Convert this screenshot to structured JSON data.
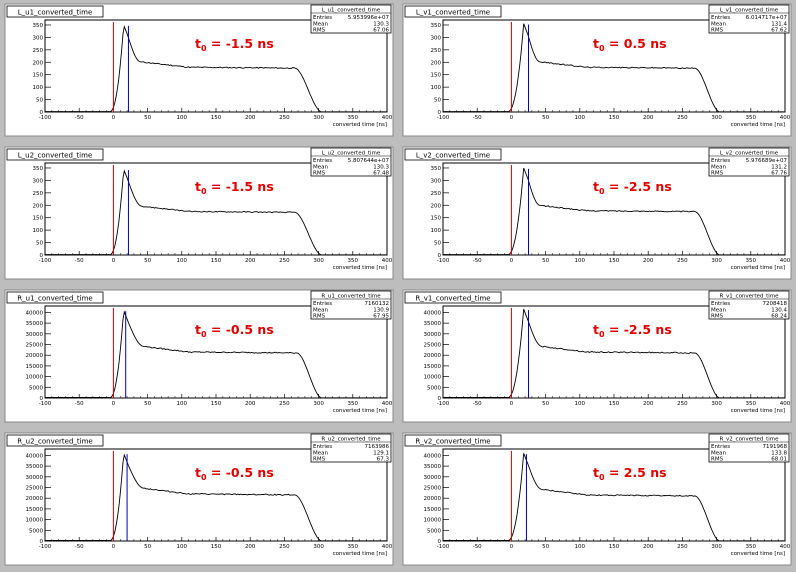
{
  "window": {
    "background": "#bdbdbd",
    "pad_color": "#ffffff",
    "curve_color": "#000000",
    "cut_color": "#d00000",
    "mean_color": "#0000c0",
    "annot_color": "#e00000"
  },
  "stats_labels": {
    "entries": "Entries",
    "mean": "Mean",
    "rms": "RMS"
  },
  "chart_data": [
    {
      "type": "line",
      "name": "L_u1_converted_time",
      "title": "L_u1_converted_time",
      "stats": {
        "entries": "5.953996e+07",
        "mean": "130.3",
        "rms": "67.06"
      },
      "annotation": {
        "t0": "t",
        "sub": "0",
        "rest": " = -1.5 ns"
      },
      "xlabel": "converted time [ns]",
      "xlim": [
        -100,
        400
      ],
      "ylim": [
        0,
        370
      ],
      "xticks": [
        "-100",
        "-50",
        "0",
        "50",
        "100",
        "150",
        "200",
        "250",
        "300",
        "350",
        "400"
      ],
      "yticks": [
        "0",
        "50",
        "100",
        "150",
        "200",
        "250",
        "300",
        "350"
      ],
      "ytick_values": [
        0,
        50,
        100,
        150,
        200,
        250,
        300,
        350
      ],
      "cut_x": 0,
      "mean_line_x": 22,
      "peak": 350,
      "plateau": 180,
      "shape": {
        "rise_start": -5,
        "peak_x": 15,
        "dip_x": 40,
        "knee_x": 265,
        "end_x": 305
      }
    },
    {
      "type": "line",
      "name": "L_v1_converted_time",
      "title": "L_v1_converted_time",
      "stats": {
        "entries": "6.014717e+07",
        "mean": "131.4",
        "rms": "67.62"
      },
      "annotation": {
        "t0": "t",
        "sub": "0",
        "rest": " = 0.5 ns"
      },
      "xlabel": "converted time [ns]",
      "xlim": [
        -100,
        400
      ],
      "ylim": [
        0,
        370
      ],
      "xticks": [
        "-100",
        "-50",
        "0",
        "50",
        "100",
        "150",
        "200",
        "250",
        "300",
        "350",
        "400"
      ],
      "yticks": [
        "0",
        "50",
        "100",
        "150",
        "200",
        "250",
        "300",
        "350"
      ],
      "ytick_values": [
        0,
        50,
        100,
        150,
        200,
        250,
        300,
        350
      ],
      "cut_x": 0,
      "mean_line_x": 25,
      "peak": 355,
      "plateau": 180,
      "shape": {
        "rise_start": -5,
        "peak_x": 18,
        "dip_x": 42,
        "knee_x": 268,
        "end_x": 305
      }
    },
    {
      "type": "line",
      "name": "L_u2_converted_time",
      "title": "L_u2_converted_time",
      "stats": {
        "entries": "5.807644e+07",
        "mean": "130.3",
        "rms": "67.48"
      },
      "annotation": {
        "t0": "t",
        "sub": "0",
        "rest": " = -1.5 ns"
      },
      "xlabel": "converted time [ns]",
      "xlim": [
        -100,
        400
      ],
      "ylim": [
        0,
        370
      ],
      "xticks": [
        "-100",
        "-50",
        "0",
        "50",
        "100",
        "150",
        "200",
        "250",
        "300",
        "350",
        "400"
      ],
      "yticks": [
        "0",
        "50",
        "100",
        "150",
        "200",
        "250",
        "300",
        "350"
      ],
      "ytick_values": [
        0,
        50,
        100,
        150,
        200,
        250,
        300,
        350
      ],
      "cut_x": 0,
      "mean_line_x": 22,
      "peak": 345,
      "plateau": 175,
      "shape": {
        "rise_start": -5,
        "peak_x": 15,
        "dip_x": 42,
        "knee_x": 265,
        "end_x": 305
      }
    },
    {
      "type": "line",
      "name": "L_v2_converted_time",
      "title": "L_v2_converted_time",
      "stats": {
        "entries": "5.976689e+07",
        "mean": "131.2",
        "rms": "67.76"
      },
      "annotation": {
        "t0": "t",
        "sub": "0",
        "rest": " = -2.5 ns"
      },
      "xlabel": "converted time [ns]",
      "xlim": [
        -100,
        400
      ],
      "ylim": [
        0,
        370
      ],
      "xticks": [
        "-100",
        "-50",
        "0",
        "50",
        "100",
        "150",
        "200",
        "250",
        "300",
        "350",
        "400"
      ],
      "yticks": [
        "0",
        "50",
        "100",
        "150",
        "200",
        "250",
        "300",
        "350"
      ],
      "ytick_values": [
        0,
        50,
        100,
        150,
        200,
        250,
        300,
        350
      ],
      "cut_x": 0,
      "mean_line_x": 25,
      "peak": 350,
      "plateau": 178,
      "shape": {
        "rise_start": -5,
        "peak_x": 18,
        "dip_x": 42,
        "knee_x": 268,
        "end_x": 305
      }
    },
    {
      "type": "line",
      "name": "R_u1_converted_time",
      "title": "R_u1_converted_time",
      "stats": {
        "entries": "7160132",
        "mean": "130.9",
        "rms": "67.95"
      },
      "annotation": {
        "t0": "t",
        "sub": "0",
        "rest": " = -0.5 ns"
      },
      "xlabel": "converted time [ns]",
      "xlim": [
        -100,
        400
      ],
      "ylim": [
        0,
        43000
      ],
      "xticks": [
        "-100",
        "-50",
        "0",
        "50",
        "100",
        "150",
        "200",
        "250",
        "300",
        "350",
        "400"
      ],
      "yticks": [
        "0",
        "5000",
        "10000",
        "15000",
        "20000",
        "25000",
        "30000",
        "35000",
        "40000"
      ],
      "ytick_values": [
        0,
        5000,
        10000,
        15000,
        20000,
        25000,
        30000,
        35000,
        40000
      ],
      "cut_x": 0,
      "mean_line_x": 18,
      "peak": 41000,
      "plateau": 21500,
      "shape": {
        "rise_start": -5,
        "peak_x": 15,
        "dip_x": 45,
        "knee_x": 268,
        "end_x": 305
      }
    },
    {
      "type": "line",
      "name": "R_v1_converted_time",
      "title": "R_v1_converted_time",
      "stats": {
        "entries": "7208418",
        "mean": "130.4",
        "rms": "68.24"
      },
      "annotation": {
        "t0": "t",
        "sub": "0",
        "rest": " = -2.5 ns"
      },
      "xlabel": "converted time [ns]",
      "xlim": [
        -100,
        400
      ],
      "ylim": [
        0,
        43000
      ],
      "xticks": [
        "-100",
        "-50",
        "0",
        "50",
        "100",
        "150",
        "200",
        "250",
        "300",
        "350",
        "400"
      ],
      "yticks": [
        "0",
        "5000",
        "10000",
        "15000",
        "20000",
        "25000",
        "30000",
        "35000",
        "40000"
      ],
      "ytick_values": [
        0,
        5000,
        10000,
        15000,
        20000,
        25000,
        30000,
        35000,
        40000
      ],
      "cut_x": 0,
      "mean_line_x": 25,
      "peak": 41500,
      "plateau": 21500,
      "shape": {
        "rise_start": -5,
        "peak_x": 18,
        "dip_x": 45,
        "knee_x": 268,
        "end_x": 305
      }
    },
    {
      "type": "line",
      "name": "R_u2_converted_time",
      "title": "R_u2_converted_time",
      "stats": {
        "entries": "7163986",
        "mean": "129.1",
        "rms": "67.3"
      },
      "annotation": {
        "t0": "t",
        "sub": "0",
        "rest": " = -0.5 ns"
      },
      "xlabel": "converted time [ns]",
      "xlim": [
        -100,
        400
      ],
      "ylim": [
        0,
        43000
      ],
      "xticks": [
        "-100",
        "-50",
        "0",
        "50",
        "100",
        "150",
        "200",
        "250",
        "300",
        "350",
        "400"
      ],
      "yticks": [
        "0",
        "5000",
        "10000",
        "15000",
        "20000",
        "25000",
        "30000",
        "35000",
        "40000"
      ],
      "ytick_values": [
        0,
        5000,
        10000,
        15000,
        20000,
        25000,
        30000,
        35000,
        40000
      ],
      "cut_x": 0,
      "mean_line_x": 20,
      "peak": 41000,
      "plateau": 22000,
      "shape": {
        "rise_start": -5,
        "peak_x": 15,
        "dip_x": 45,
        "knee_x": 265,
        "end_x": 305
      }
    },
    {
      "type": "line",
      "name": "R_v2_converted_time",
      "title": "R_v2_converted_time",
      "stats": {
        "entries": "7191968",
        "mean": "133.8",
        "rms": "68.01"
      },
      "annotation": {
        "t0": "t",
        "sub": "0",
        "rest": " = 2.5 ns"
      },
      "xlabel": "converted time [ns]",
      "xlim": [
        -100,
        400
      ],
      "ylim": [
        0,
        43000
      ],
      "xticks": [
        "-100",
        "-50",
        "0",
        "50",
        "100",
        "150",
        "200",
        "250",
        "300",
        "350",
        "400"
      ],
      "yticks": [
        "0",
        "5000",
        "10000",
        "15000",
        "20000",
        "25000",
        "30000",
        "35000",
        "40000"
      ],
      "ytick_values": [
        0,
        5000,
        10000,
        15000,
        20000,
        25000,
        30000,
        35000,
        40000
      ],
      "cut_x": 0,
      "mean_line_x": 22,
      "peak": 41000,
      "plateau": 21500,
      "shape": {
        "rise_start": -5,
        "peak_x": 18,
        "dip_x": 45,
        "knee_x": 268,
        "end_x": 305
      }
    }
  ]
}
